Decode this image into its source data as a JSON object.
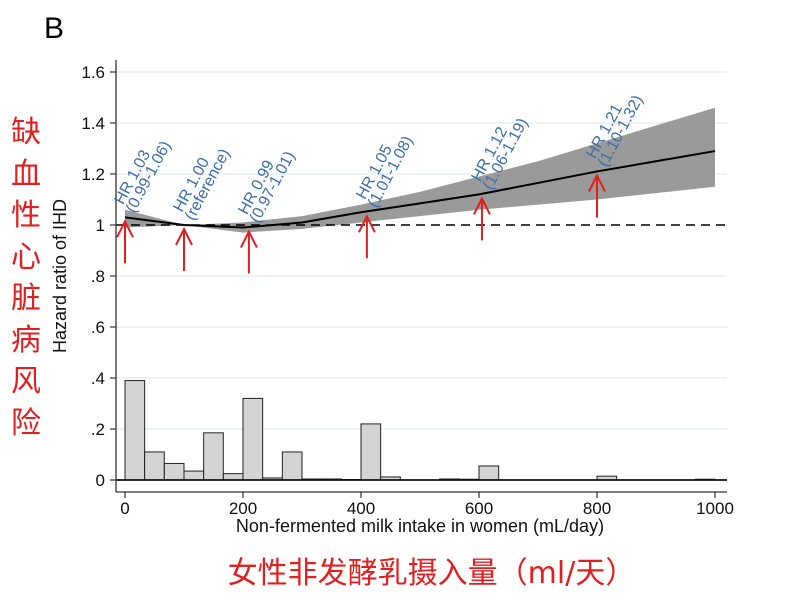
{
  "panel_label": "B",
  "annotation_y_cn": [
    "缺",
    "血",
    "性",
    "心",
    "脏",
    "病",
    "风",
    "险"
  ],
  "annotation_x_cn": "女性非发酵乳摄入量（ml/天）",
  "colors": {
    "curve": "#000000",
    "ci_band": "#9a9a9a",
    "bars": "#d4d4d4",
    "labels": "#3d6ea8",
    "arrows": "#e02020",
    "annotation": "#e02020"
  },
  "chart_data": {
    "type": "line",
    "xlabel": "Non-fermented milk intake in women (mL/day)",
    "ylabel": "Hazard ratio of IHD",
    "xlim": [
      0,
      1000
    ],
    "ylim": [
      0,
      1.6
    ],
    "xticks": [
      "0",
      "200",
      "400",
      "600",
      "800",
      "1000"
    ],
    "yticks": [
      "0",
      ".2",
      ".4",
      ".6",
      ".8",
      "1",
      "1.2",
      "1.4",
      "1.6"
    ],
    "grid": true,
    "reference_line": 1,
    "curve": {
      "x": [
        0,
        100,
        200,
        300,
        400,
        500,
        600,
        700,
        800,
        900,
        1000
      ],
      "hr": [
        1.03,
        1.0,
        0.99,
        1.01,
        1.05,
        1.085,
        1.12,
        1.165,
        1.21,
        1.25,
        1.29
      ],
      "lower": [
        0.99,
        1.0,
        0.97,
        0.985,
        1.01,
        1.035,
        1.06,
        1.08,
        1.1,
        1.125,
        1.15
      ],
      "upper": [
        1.06,
        1.0,
        1.01,
        1.035,
        1.08,
        1.13,
        1.19,
        1.25,
        1.32,
        1.39,
        1.46
      ]
    },
    "histogram": {
      "bin_width": 33.3,
      "bins": [
        {
          "x": 0,
          "value": 0.39
        },
        {
          "x": 33.3,
          "value": 0.11
        },
        {
          "x": 66.7,
          "value": 0.065
        },
        {
          "x": 100,
          "value": 0.035
        },
        {
          "x": 133.3,
          "value": 0.185
        },
        {
          "x": 166.7,
          "value": 0.025
        },
        {
          "x": 200,
          "value": 0.32
        },
        {
          "x": 233.3,
          "value": 0.008
        },
        {
          "x": 266.7,
          "value": 0.11
        },
        {
          "x": 300,
          "value": 0.004
        },
        {
          "x": 333.3,
          "value": 0.004
        },
        {
          "x": 366.7,
          "value": 0.002
        },
        {
          "x": 400,
          "value": 0.22
        },
        {
          "x": 433.3,
          "value": 0.012
        },
        {
          "x": 533.3,
          "value": 0.004
        },
        {
          "x": 566.7,
          "value": 0.003
        },
        {
          "x": 600,
          "value": 0.055
        },
        {
          "x": 800,
          "value": 0.015
        },
        {
          "x": 966.7,
          "value": 0.003
        }
      ]
    },
    "annotations": [
      {
        "x": 0,
        "y": 1.03,
        "line1": "HR 1.03",
        "line2": "(0.99-1.06)"
      },
      {
        "x": 100,
        "y": 1.0,
        "line1": "HR 1.00",
        "line2": "(reference)"
      },
      {
        "x": 210,
        "y": 0.99,
        "line1": "HR 0.99",
        "line2": "(0.97-1.01)"
      },
      {
        "x": 410,
        "y": 1.05,
        "line1": "HR 1.05",
        "line2": "(1.01-1.08)"
      },
      {
        "x": 605,
        "y": 1.12,
        "line1": "HR 1.12",
        "line2": "(1.06-1.19)"
      },
      {
        "x": 800,
        "y": 1.21,
        "line1": "HR 1.21",
        "line2": "(1.10-1.32)"
      }
    ]
  }
}
